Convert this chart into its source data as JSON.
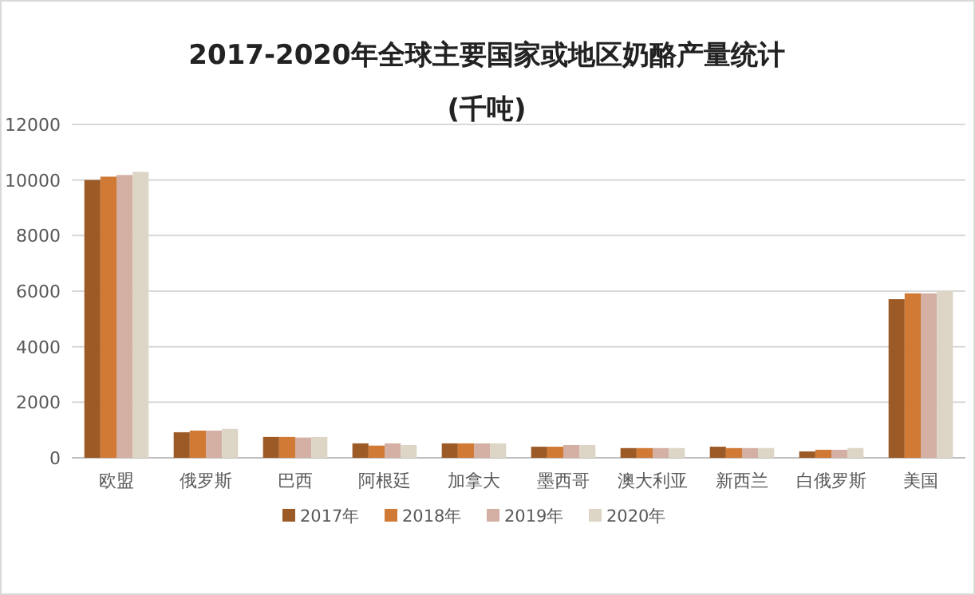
{
  "chart_data": {
    "type": "bar",
    "title": "2017-2020年全球主要国家或地区奶酪产量统计",
    "subtitle": "(千吨)",
    "categories": [
      "欧盟",
      "俄罗斯",
      "巴西",
      "阿根廷",
      "加拿大",
      "墨西哥",
      "澳大利亚",
      "新西兰",
      "白俄罗斯",
      "美国"
    ],
    "series": [
      {
        "name": "2017年",
        "color": "#9c5a27",
        "values": [
          10000,
          920,
          750,
          520,
          520,
          400,
          350,
          400,
          230,
          5710
        ]
      },
      {
        "name": "2018年",
        "color": "#d07a35",
        "values": [
          10120,
          980,
          750,
          440,
          520,
          400,
          350,
          350,
          290,
          5920
        ]
      },
      {
        "name": "2019年",
        "color": "#d3b0a3",
        "values": [
          10180,
          980,
          730,
          520,
          520,
          460,
          350,
          350,
          290,
          5920
        ]
      },
      {
        "name": "2020年",
        "color": "#ddd5c5",
        "values": [
          10290,
          1040,
          750,
          460,
          520,
          460,
          350,
          350,
          350,
          6000
        ]
      }
    ],
    "ylim": [
      0,
      12000
    ],
    "yticks": [
      0,
      2000,
      4000,
      6000,
      8000,
      10000,
      12000
    ],
    "grid": "y",
    "legend": "bottom"
  }
}
